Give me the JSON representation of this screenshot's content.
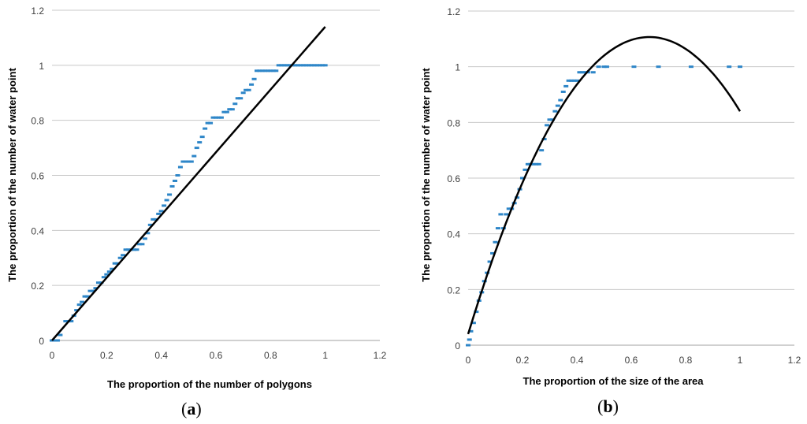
{
  "chart_data": [
    {
      "panel": "a",
      "type": "scatter",
      "caption_open": "(",
      "caption_letter": "a",
      "caption_close": ")",
      "xlabel": "The proportion of the number of polygons",
      "ylabel": "The proportion of the number of water point",
      "xlim": [
        0,
        1.2
      ],
      "ylim": [
        0,
        1.2
      ],
      "xticks": [
        "0",
        "0.2",
        "0.4",
        "0.6",
        "0.8",
        "1",
        "1.2"
      ],
      "yticks": [
        "0",
        "0.2",
        "0.4",
        "0.6",
        "0.8",
        "1",
        "1.2"
      ],
      "grid": "horizontal",
      "series": [
        {
          "kind": "points",
          "color": "#2e86c8",
          "x": [
            0,
            0.01,
            0.02,
            0.03,
            0.05,
            0.06,
            0.07,
            0.08,
            0.09,
            0.1,
            0.11,
            0.12,
            0.13,
            0.14,
            0.15,
            0.16,
            0.17,
            0.18,
            0.19,
            0.2,
            0.21,
            0.22,
            0.23,
            0.24,
            0.25,
            0.26,
            0.27,
            0.28,
            0.29,
            0.3,
            0.31,
            0.32,
            0.33,
            0.34,
            0.35,
            0.36,
            0.37,
            0.38,
            0.39,
            0.4,
            0.41,
            0.42,
            0.43,
            0.44,
            0.45,
            0.46,
            0.47,
            0.48,
            0.49,
            0.5,
            0.51,
            0.52,
            0.53,
            0.54,
            0.55,
            0.56,
            0.57,
            0.58,
            0.59,
            0.6,
            0.61,
            0.62,
            0.63,
            0.64,
            0.65,
            0.66,
            0.67,
            0.68,
            0.69,
            0.7,
            0.71,
            0.72,
            0.73,
            0.74,
            0.75,
            0.76,
            0.77,
            0.78,
            0.79,
            0.8,
            0.81,
            0.82,
            0.83,
            0.84,
            0.85,
            0.86,
            0.87,
            0.88,
            0.89,
            0.9,
            0.91,
            0.92,
            0.93,
            0.94,
            0.95,
            0.96,
            0.97,
            0.98,
            0.99,
            1.0
          ],
          "y": [
            0,
            0,
            0,
            0.02,
            0.07,
            0.07,
            0.07,
            0.09,
            0.11,
            0.13,
            0.14,
            0.16,
            0.16,
            0.18,
            0.18,
            0.19,
            0.21,
            0.21,
            0.23,
            0.24,
            0.25,
            0.26,
            0.28,
            0.28,
            0.3,
            0.31,
            0.33,
            0.33,
            0.33,
            0.33,
            0.33,
            0.35,
            0.35,
            0.37,
            0.39,
            0.42,
            0.44,
            0.44,
            0.46,
            0.47,
            0.49,
            0.51,
            0.53,
            0.56,
            0.58,
            0.6,
            0.63,
            0.65,
            0.65,
            0.65,
            0.65,
            0.67,
            0.7,
            0.72,
            0.74,
            0.77,
            0.79,
            0.79,
            0.81,
            0.81,
            0.81,
            0.81,
            0.83,
            0.83,
            0.84,
            0.84,
            0.86,
            0.88,
            0.88,
            0.9,
            0.91,
            0.91,
            0.93,
            0.95,
            0.98,
            0.98,
            0.98,
            0.98,
            0.98,
            0.98,
            0.98,
            0.98,
            1,
            1,
            1,
            1,
            1,
            1,
            1,
            1,
            1,
            1,
            1,
            1,
            1,
            1,
            1,
            1,
            1,
            1
          ]
        },
        {
          "kind": "fit",
          "color": "#000000",
          "x": [
            0,
            1.0
          ],
          "y": [
            0,
            1.14
          ]
        }
      ]
    },
    {
      "panel": "b",
      "type": "scatter",
      "caption_open": "(",
      "caption_letter": "b",
      "caption_close": ")",
      "xlabel": "The proportion of the size of the area",
      "ylabel": "The proportion of the number of water point",
      "xlim": [
        0,
        1.2
      ],
      "ylim": [
        0,
        1.2
      ],
      "xticks": [
        "0",
        "0.2",
        "0.4",
        "0.6",
        "0.8",
        "1",
        "1.2"
      ],
      "yticks": [
        "0",
        "0.2",
        "0.4",
        "0.6",
        "0.8",
        "1",
        "1.2"
      ],
      "grid": "horizontal",
      "series": [
        {
          "kind": "points",
          "color": "#2e86c8",
          "x": [
            0,
            0.005,
            0.01,
            0.02,
            0.03,
            0.04,
            0.05,
            0.06,
            0.07,
            0.08,
            0.09,
            0.1,
            0.11,
            0.12,
            0.13,
            0.14,
            0.15,
            0.16,
            0.17,
            0.18,
            0.19,
            0.2,
            0.21,
            0.22,
            0.23,
            0.24,
            0.25,
            0.26,
            0.27,
            0.28,
            0.29,
            0.3,
            0.31,
            0.32,
            0.33,
            0.34,
            0.35,
            0.36,
            0.37,
            0.38,
            0.39,
            0.4,
            0.41,
            0.42,
            0.43,
            0.44,
            0.46,
            0.48,
            0.5,
            0.51,
            0.61,
            0.7,
            0.82,
            0.96,
            1.0
          ],
          "y": [
            0,
            0.02,
            0.05,
            0.08,
            0.12,
            0.16,
            0.19,
            0.23,
            0.26,
            0.3,
            0.33,
            0.37,
            0.42,
            0.47,
            0.42,
            0.47,
            0.49,
            0.49,
            0.51,
            0.53,
            0.56,
            0.6,
            0.63,
            0.65,
            0.65,
            0.65,
            0.65,
            0.65,
            0.7,
            0.74,
            0.79,
            0.81,
            0.81,
            0.84,
            0.86,
            0.88,
            0.91,
            0.93,
            0.95,
            0.95,
            0.95,
            0.95,
            0.98,
            0.98,
            0.98,
            0.98,
            0.98,
            1,
            1,
            1,
            1,
            1,
            1,
            1,
            1
          ]
        },
        {
          "kind": "fit",
          "color": "#000000",
          "curve": "quadratic",
          "coeffs": [
            0.04,
            3.2,
            -2.4
          ],
          "x_range": [
            0,
            1.0
          ]
        }
      ]
    }
  ]
}
